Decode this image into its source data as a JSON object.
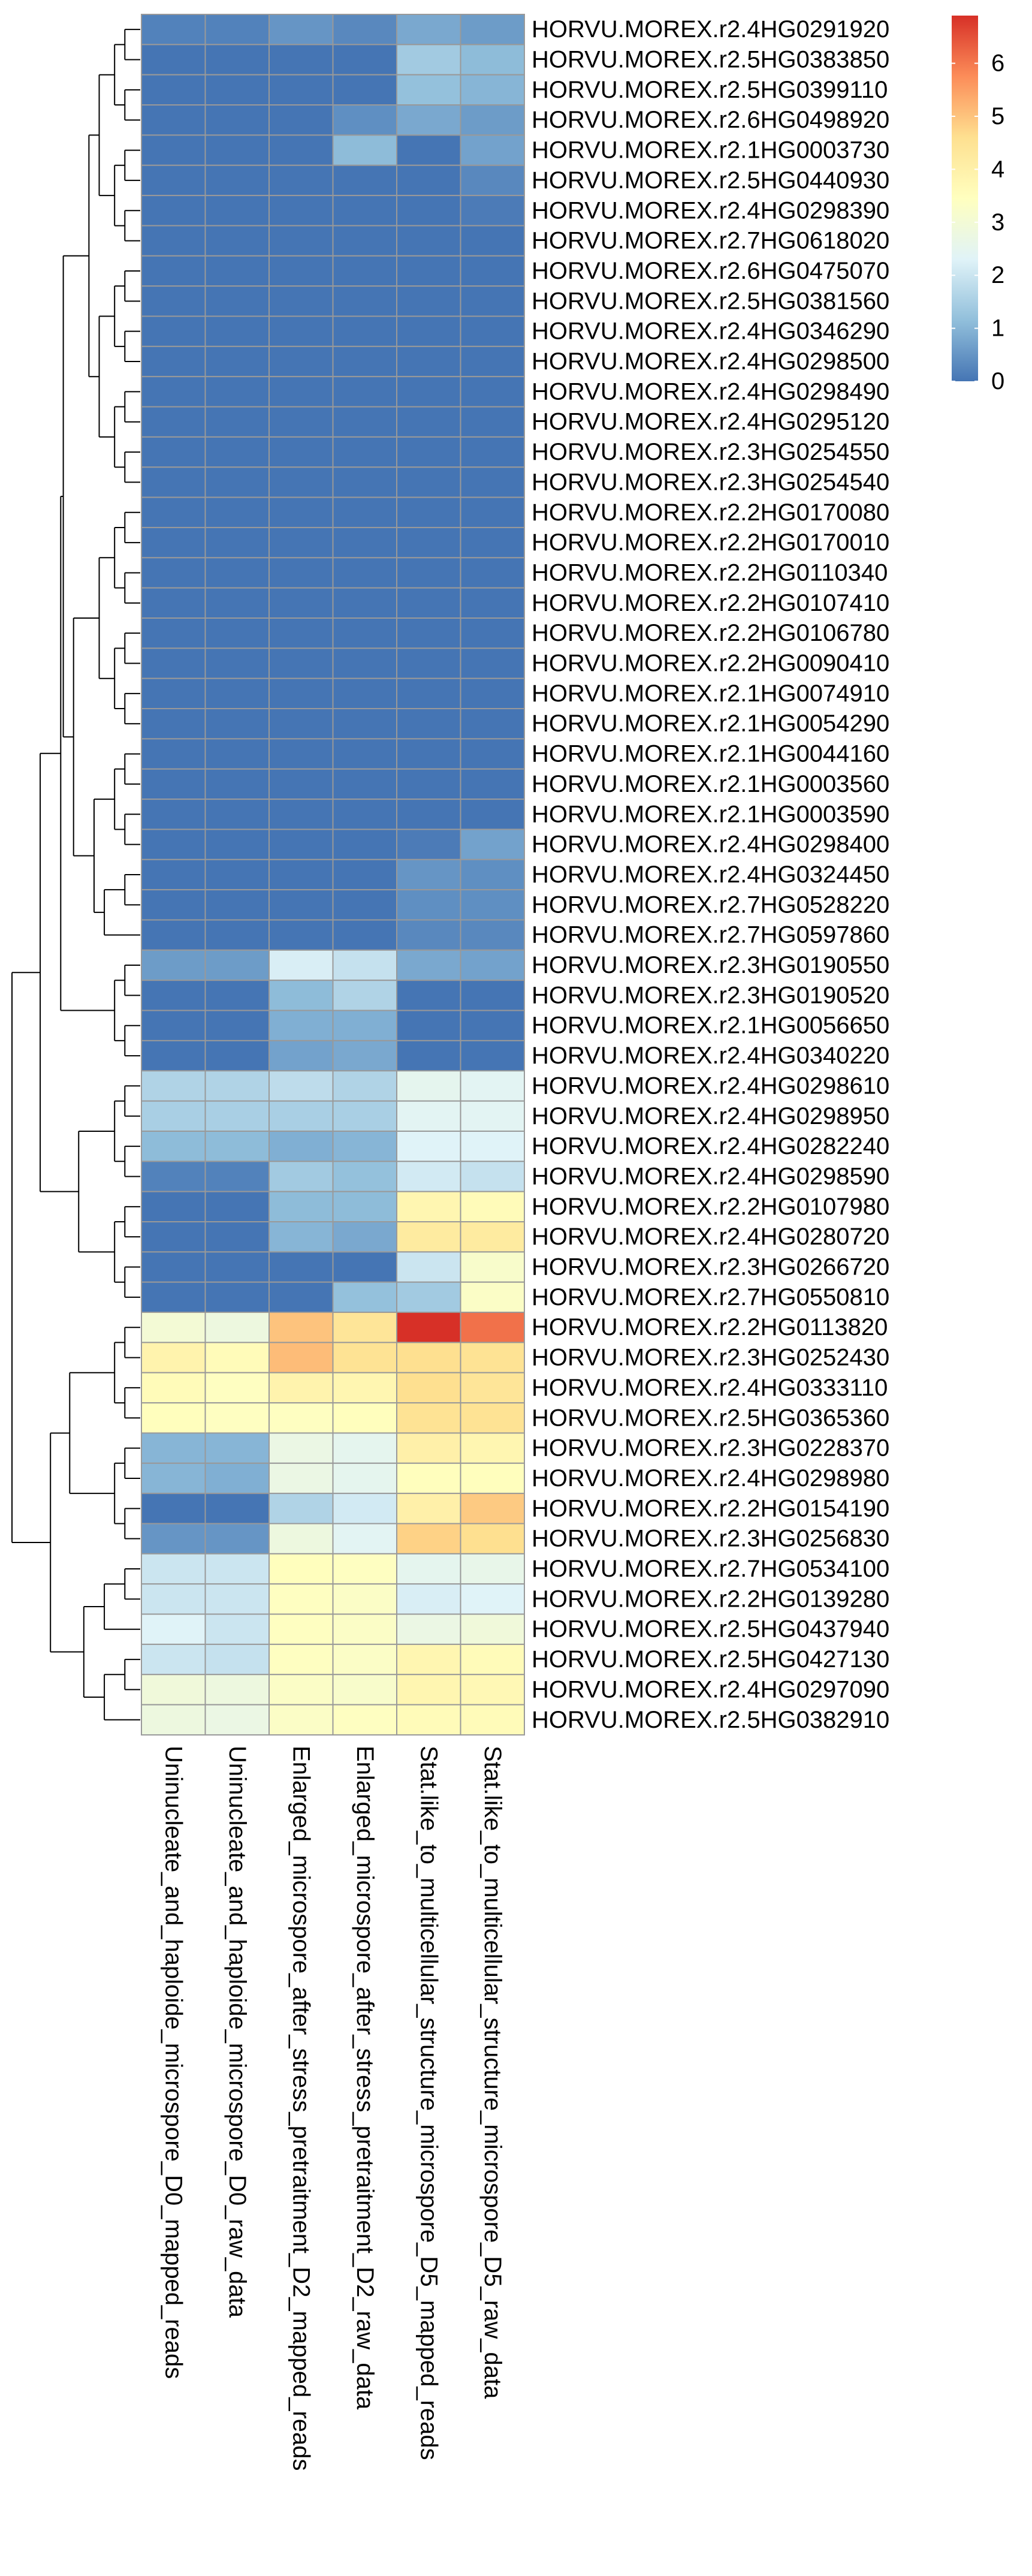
{
  "chart_data": {
    "type": "heatmap",
    "title": "",
    "xlabel": "",
    "ylabel": "",
    "columns": [
      "Uninucleate_and_haploide_microspore_D0_mapped_reads",
      "Uninucleate_and_haploide_microspore_D0_raw_data",
      "Enlarged_microspore_after_stress_pretraitment_D2_mapped_reads",
      "Enlarged_microspore_after_stress_pretraitment_D2_raw_data",
      "Stat.like_to_multicellular_structure_microspore_D5_mapped_reads",
      "Stat.like_to_multicellular_structure_microspore_D5_raw_data"
    ],
    "rows": [
      "HORVU.MOREX.r2.4HG0291920",
      "HORVU.MOREX.r2.5HG0383850",
      "HORVU.MOREX.r2.5HG0399110",
      "HORVU.MOREX.r2.6HG0498920",
      "HORVU.MOREX.r2.1HG0003730",
      "HORVU.MOREX.r2.5HG0440930",
      "HORVU.MOREX.r2.4HG0298390",
      "HORVU.MOREX.r2.7HG0618020",
      "HORVU.MOREX.r2.6HG0475070",
      "HORVU.MOREX.r2.5HG0381560",
      "HORVU.MOREX.r2.4HG0346290",
      "HORVU.MOREX.r2.4HG0298500",
      "HORVU.MOREX.r2.4HG0298490",
      "HORVU.MOREX.r2.4HG0295120",
      "HORVU.MOREX.r2.3HG0254550",
      "HORVU.MOREX.r2.3HG0254540",
      "HORVU.MOREX.r2.2HG0170080",
      "HORVU.MOREX.r2.2HG0170010",
      "HORVU.MOREX.r2.2HG0110340",
      "HORVU.MOREX.r2.2HG0107410",
      "HORVU.MOREX.r2.2HG0106780",
      "HORVU.MOREX.r2.2HG0090410",
      "HORVU.MOREX.r2.1HG0074910",
      "HORVU.MOREX.r2.1HG0054290",
      "HORVU.MOREX.r2.1HG0044160",
      "HORVU.MOREX.r2.1HG0003560",
      "HORVU.MOREX.r2.1HG0003590",
      "HORVU.MOREX.r2.4HG0298400",
      "HORVU.MOREX.r2.4HG0324450",
      "HORVU.MOREX.r2.7HG0528220",
      "HORVU.MOREX.r2.7HG0597860",
      "HORVU.MOREX.r2.3HG0190550",
      "HORVU.MOREX.r2.3HG0190520",
      "HORVU.MOREX.r2.1HG0056650",
      "HORVU.MOREX.r2.4HG0340220",
      "HORVU.MOREX.r2.4HG0298610",
      "HORVU.MOREX.r2.4HG0298950",
      "HORVU.MOREX.r2.4HG0282240",
      "HORVU.MOREX.r2.4HG0298590",
      "HORVU.MOREX.r2.2HG0107980",
      "HORVU.MOREX.r2.4HG0280720",
      "HORVU.MOREX.r2.3HG0266720",
      "HORVU.MOREX.r2.7HG0550810",
      "HORVU.MOREX.r2.2HG0113820",
      "HORVU.MOREX.r2.3HG0252430",
      "HORVU.MOREX.r2.4HG0333110",
      "HORVU.MOREX.r2.5HG0365360",
      "HORVU.MOREX.r2.3HG0228370",
      "HORVU.MOREX.r2.4HG0298980",
      "HORVU.MOREX.r2.2HG0154190",
      "HORVU.MOREX.r2.3HG0256830",
      "HORVU.MOREX.r2.7HG0534100",
      "HORVU.MOREX.r2.2HG0139280",
      "HORVU.MOREX.r2.5HG0437940",
      "HORVU.MOREX.r2.5HG0427130",
      "HORVU.MOREX.r2.4HG0297090",
      "HORVU.MOREX.r2.5HG0382910"
    ],
    "values": [
      [
        0.2,
        0.2,
        0.5,
        0.3,
        0.8,
        0.6
      ],
      [
        0.0,
        0.0,
        0.0,
        0.0,
        1.4,
        1.1
      ],
      [
        0.0,
        0.0,
        0.0,
        0.0,
        1.2,
        1.0
      ],
      [
        0.0,
        0.0,
        0.0,
        0.4,
        0.8,
        0.6
      ],
      [
        0.0,
        0.0,
        0.0,
        1.1,
        0.0,
        0.7
      ],
      [
        0.0,
        0.0,
        0.0,
        0.0,
        0.0,
        0.3
      ],
      [
        0.0,
        0.0,
        0.0,
        0.0,
        0.0,
        0.1
      ],
      [
        0.0,
        0.0,
        0.0,
        0.0,
        0.0,
        0.0
      ],
      [
        0.0,
        0.0,
        0.0,
        0.0,
        0.0,
        0.0
      ],
      [
        0.0,
        0.0,
        0.0,
        0.0,
        0.0,
        0.0
      ],
      [
        0.0,
        0.0,
        0.0,
        0.0,
        0.0,
        0.0
      ],
      [
        0.0,
        0.0,
        0.0,
        0.0,
        0.0,
        0.0
      ],
      [
        0.0,
        0.0,
        0.0,
        0.0,
        0.0,
        0.0
      ],
      [
        0.0,
        0.0,
        0.0,
        0.0,
        0.0,
        0.0
      ],
      [
        0.0,
        0.0,
        0.0,
        0.0,
        0.0,
        0.0
      ],
      [
        0.0,
        0.0,
        0.0,
        0.0,
        0.0,
        0.0
      ],
      [
        0.0,
        0.0,
        0.0,
        0.0,
        0.0,
        0.0
      ],
      [
        0.0,
        0.0,
        0.0,
        0.0,
        0.0,
        0.0
      ],
      [
        0.0,
        0.0,
        0.0,
        0.0,
        0.0,
        0.0
      ],
      [
        0.0,
        0.0,
        0.0,
        0.0,
        0.0,
        0.0
      ],
      [
        0.0,
        0.0,
        0.0,
        0.0,
        0.0,
        0.0
      ],
      [
        0.0,
        0.0,
        0.0,
        0.0,
        0.0,
        0.0
      ],
      [
        0.0,
        0.0,
        0.0,
        0.0,
        0.0,
        0.0
      ],
      [
        0.0,
        0.0,
        0.0,
        0.0,
        0.0,
        0.0
      ],
      [
        0.0,
        0.0,
        0.0,
        0.0,
        0.0,
        0.0
      ],
      [
        0.0,
        0.0,
        0.0,
        0.0,
        0.0,
        0.0
      ],
      [
        0.0,
        0.0,
        0.0,
        0.0,
        0.0,
        0.0
      ],
      [
        0.0,
        0.0,
        0.0,
        0.0,
        0.1,
        0.7
      ],
      [
        0.0,
        0.0,
        0.0,
        0.0,
        0.5,
        0.4
      ],
      [
        0.0,
        0.0,
        0.0,
        0.0,
        0.4,
        0.4
      ],
      [
        0.0,
        0.0,
        0.0,
        0.0,
        0.3,
        0.3
      ],
      [
        0.6,
        0.6,
        2.2,
        1.9,
        0.8,
        0.7
      ],
      [
        0.0,
        0.0,
        1.1,
        1.6,
        0.0,
        0.0
      ],
      [
        0.0,
        0.0,
        0.9,
        0.9,
        0.0,
        0.0
      ],
      [
        0.0,
        0.0,
        0.7,
        0.8,
        0.0,
        0.0
      ],
      [
        1.6,
        1.6,
        1.8,
        1.6,
        2.5,
        2.4
      ],
      [
        1.5,
        1.5,
        1.5,
        1.5,
        2.4,
        2.4
      ],
      [
        1.1,
        1.1,
        0.9,
        1.0,
        2.3,
        2.3
      ],
      [
        0.2,
        0.2,
        1.4,
        1.2,
        2.1,
        1.9
      ],
      [
        0.0,
        0.0,
        1.1,
        1.1,
        3.8,
        3.6
      ],
      [
        0.0,
        0.0,
        1.0,
        0.8,
        4.2,
        4.2
      ],
      [
        0.0,
        0.0,
        0.0,
        0.0,
        2.0,
        3.2
      ],
      [
        0.0,
        0.0,
        0.0,
        1.2,
        1.4,
        3.3
      ],
      [
        3.0,
        2.8,
        5.0,
        4.4,
        6.9,
        6.1
      ],
      [
        3.9,
        3.6,
        5.1,
        4.5,
        4.6,
        4.5
      ],
      [
        3.6,
        3.4,
        3.9,
        3.8,
        4.6,
        4.4
      ],
      [
        3.5,
        3.4,
        3.4,
        3.5,
        4.5,
        4.5
      ],
      [
        1.0,
        1.0,
        2.7,
        2.5,
        4.0,
        3.8
      ],
      [
        1.0,
        0.9,
        2.7,
        2.5,
        3.5,
        3.5
      ],
      [
        0.0,
        0.0,
        1.6,
        2.1,
        4.0,
        4.9
      ],
      [
        0.5,
        0.5,
        2.8,
        2.4,
        4.8,
        4.6
      ],
      [
        2.0,
        2.0,
        3.5,
        3.4,
        2.5,
        2.6
      ],
      [
        2.0,
        2.0,
        3.4,
        3.3,
        2.2,
        2.3
      ],
      [
        2.3,
        2.0,
        3.4,
        3.3,
        2.7,
        2.9
      ],
      [
        2.0,
        1.9,
        3.4,
        3.3,
        3.8,
        3.6
      ],
      [
        2.9,
        2.8,
        3.3,
        3.2,
        3.8,
        3.7
      ],
      [
        2.8,
        2.7,
        3.3,
        3.4,
        3.6,
        3.6
      ]
    ],
    "colorbar": {
      "min": 0,
      "max": 6.9,
      "ticks": [
        "0",
        "1",
        "2",
        "3",
        "4",
        "5",
        "6"
      ],
      "colors": [
        "#4575B4",
        "#91BFDB",
        "#E0F3F8",
        "#FFFFBF",
        "#FEE090",
        "#FC8D59",
        "#D73027"
      ]
    },
    "grid": true,
    "cell_border_color": "#999999",
    "legend_placement": "top-right",
    "row_dendrogram": true,
    "column_dendrogram": false
  }
}
